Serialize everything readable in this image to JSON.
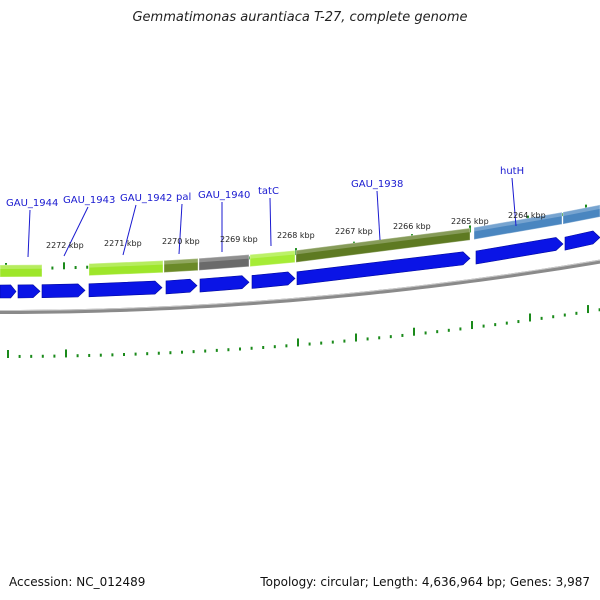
{
  "title": "Gemmatimonas aurantiaca T-27, complete genome",
  "accession": "Accession: NC_012489",
  "summary": "Topology: circular; Length: 4,636,964 bp; Genes: 3,987",
  "colors": {
    "cds": "#0a14e6",
    "backbone": "#8a8a8a",
    "ticks": "#1a8a1a",
    "label": "#1a1ad0"
  },
  "tick_labels": [
    "2272 kbp",
    "2271 kbp",
    "2270 kbp",
    "2269 kbp",
    "2268 kbp",
    "2267 kbp",
    "2266 kbp",
    "2265 kbp",
    "2264 kbp"
  ],
  "gene_labels": [
    "GAU_1944",
    "GAU_1943",
    "GAU_1942",
    "pal",
    "GAU_1940",
    "tatC",
    "GAU_1938",
    "hutH"
  ],
  "feature_blocks": [
    {
      "name": "feature-block-lightgreen-1",
      "color": "#9ee62a"
    },
    {
      "name": "feature-block-lightgreen-2",
      "color": "#9ee62a"
    },
    {
      "name": "feature-block-olive-1",
      "color": "#6b8a28"
    },
    {
      "name": "feature-block-gray",
      "color": "#6a6a6a"
    },
    {
      "name": "feature-block-lightgreen-3",
      "color": "#a6ec36"
    },
    {
      "name": "feature-block-olive-2",
      "color": "#5e7a22"
    },
    {
      "name": "feature-block-steelblue",
      "color": "#4a86c0"
    }
  ]
}
